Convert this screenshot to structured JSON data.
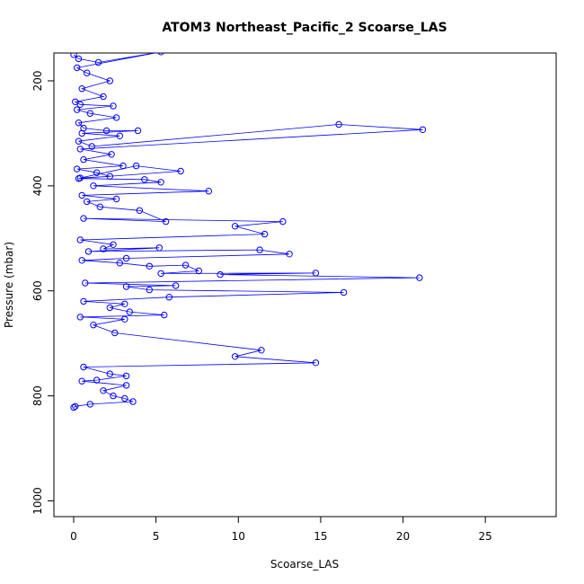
{
  "chart_data": {
    "type": "line",
    "title": "ATOM3 Northeast_Pacific_2 Scoarse_LAS",
    "xlabel": "Scoarse_LAS",
    "ylabel": "Pressure (mbar)",
    "xlim": [
      -1.2,
      29.3
    ],
    "ylim": [
      1030,
      147
    ],
    "y_reversed": true,
    "x_ticks": [
      "0",
      "5",
      "10",
      "15",
      "20",
      "25"
    ],
    "y_ticks": [
      "200",
      "400",
      "600",
      "800",
      "1000"
    ],
    "grid": false,
    "legend": "none",
    "series_color": "#0000ff",
    "marker": "open-circle",
    "series": [
      {
        "x": [
          0,
          0.3,
          1.5,
          5.3,
          0.2,
          0.8,
          2.2,
          0.5,
          1.8,
          0.1,
          0.4,
          2.4,
          0.2,
          1.0,
          2.6,
          0.3,
          0.6,
          2.0,
          3.9,
          0.5,
          2.8,
          0.3,
          1.1,
          16.1,
          21.2,
          0.4,
          2.3,
          0.6,
          3.0,
          0.2,
          1.4,
          2.2,
          0.4,
          3.8,
          6.5,
          0.3,
          4.3,
          5.3,
          1.2,
          8.2,
          0.5,
          2.6,
          0.8,
          1.6,
          4.0,
          5.6,
          0.6,
          12.7,
          9.8,
          11.6,
          0.4,
          2.4,
          1.8,
          5.2,
          0.9,
          11.3,
          13.1,
          3.2,
          0.5,
          2.8,
          4.6,
          6.8,
          7.6,
          5.3,
          14.7,
          8.9,
          21.0,
          0.7,
          6.2,
          3.2,
          4.6,
          16.4,
          5.8,
          0.6,
          3.1,
          2.2,
          3.4,
          5.5,
          0.4,
          3.1,
          1.2,
          2.5,
          11.4,
          9.8,
          14.7,
          0.6,
          2.2,
          3.2,
          1.4,
          0.5,
          3.2,
          1.8,
          2.4,
          3.1,
          3.6,
          1.0,
          0.1,
          0
        ],
        "y": [
          150,
          158,
          165,
          145,
          175,
          185,
          200,
          215,
          230,
          240,
          245,
          248,
          255,
          262,
          270,
          280,
          290,
          295,
          295,
          300,
          305,
          315,
          325,
          283,
          293,
          330,
          340,
          350,
          362,
          368,
          375,
          382,
          385,
          362,
          372,
          386,
          388,
          393,
          400,
          410,
          418,
          425,
          430,
          440,
          447,
          468,
          462,
          468,
          477,
          492,
          503,
          512,
          520,
          518,
          525,
          522,
          530,
          538,
          542,
          547,
          553,
          551,
          562,
          567,
          566,
          569,
          575,
          585,
          590,
          592,
          598,
          603,
          612,
          620,
          625,
          632,
          640,
          646,
          650,
          654,
          665,
          680,
          713,
          725,
          737,
          745,
          758,
          762,
          770,
          772,
          780,
          790,
          800,
          805,
          811,
          816,
          820,
          822
        ]
      }
    ]
  }
}
